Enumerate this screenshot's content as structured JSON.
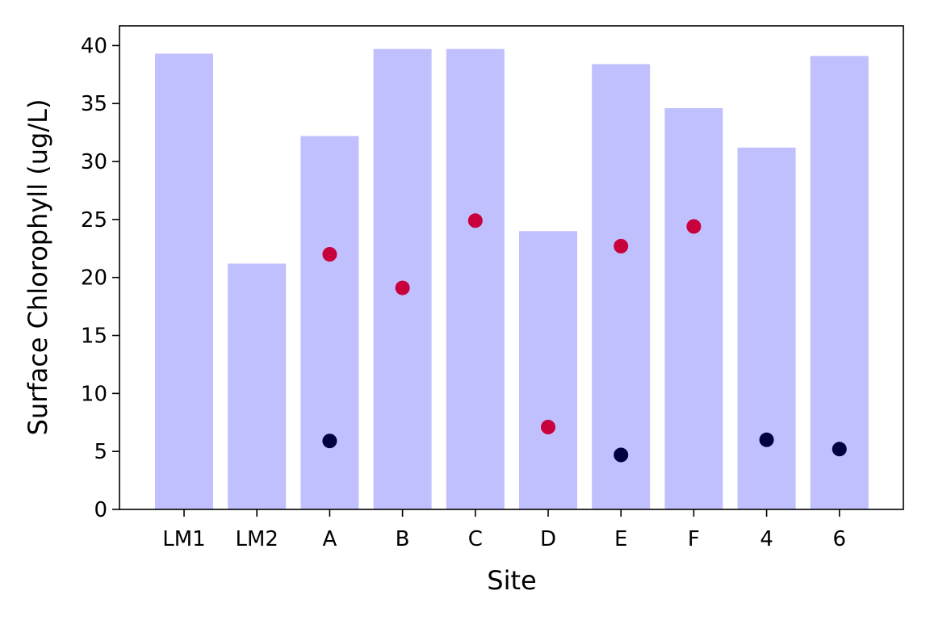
{
  "chart_data": {
    "type": "bar",
    "categories": [
      "LM1",
      "LM2",
      "A",
      "B",
      "C",
      "D",
      "E",
      "F",
      "4",
      "6"
    ],
    "bars": {
      "values": [
        39.3,
        21.2,
        32.2,
        39.7,
        39.7,
        24.0,
        38.4,
        34.6,
        31.2,
        39.1
      ],
      "color": "#c0c0ff"
    },
    "scatter_series": [
      {
        "color": "#c8003c",
        "points": [
          {
            "x": "A",
            "y": 22.0
          },
          {
            "x": "B",
            "y": 19.1
          },
          {
            "x": "C",
            "y": 24.9
          },
          {
            "x": "D",
            "y": 7.1
          },
          {
            "x": "E",
            "y": 22.7
          },
          {
            "x": "F",
            "y": 24.4
          }
        ]
      },
      {
        "color": "#000040",
        "points": [
          {
            "x": "A",
            "y": 5.9
          },
          {
            "x": "E",
            "y": 4.7
          },
          {
            "x": "4",
            "y": 6.0
          },
          {
            "x": "6",
            "y": 5.2
          }
        ]
      }
    ],
    "xlabel": "Site",
    "ylabel": "Surface Chlorophyll (ug/L)",
    "ylim": [
      0,
      41.7
    ],
    "yticks": [
      0,
      5,
      10,
      15,
      20,
      25,
      30,
      35,
      40
    ],
    "grid": false,
    "legend": "none"
  }
}
